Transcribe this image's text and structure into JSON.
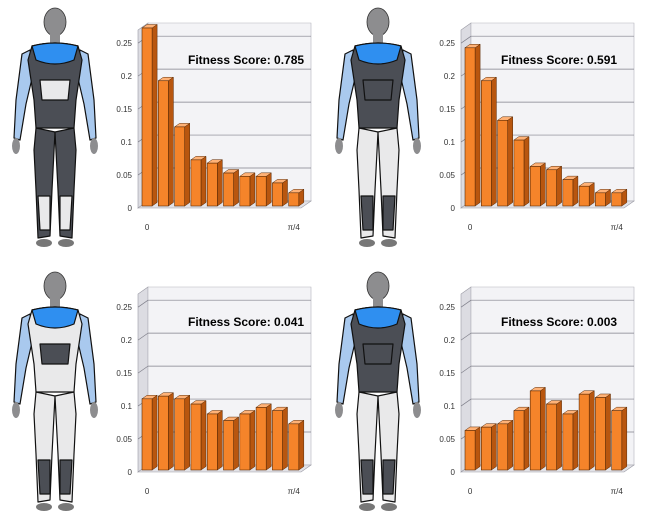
{
  "colors": {
    "bar_front": "#f5842a",
    "bar_side": "#b8560f",
    "bar_top": "#ffb277",
    "bar_edge": "#5a2a05",
    "wall": "#f3f3f6",
    "floor": "#e2e2e7",
    "grid": "#7f7f8a",
    "suit_dark": "#4b4e55",
    "suit_light": "#e9e9ea",
    "suit_blue": "#2f8ff0",
    "suit_lightblue": "#a9c9ee",
    "skin": "#8d8d8f"
  },
  "chart_data": [
    {
      "type": "bar",
      "annotation": "Fitness Score:  0.785",
      "categories": [
        "0",
        "",
        "",
        "",
        "",
        "",
        "",
        "",
        "",
        "π/4"
      ],
      "values": [
        0.27,
        0.19,
        0.12,
        0.07,
        0.065,
        0.05,
        0.045,
        0.045,
        0.035,
        0.02
      ],
      "yticks": [
        "0",
        "0.05",
        "0.1",
        "0.15",
        "0.2",
        "0.25"
      ],
      "ylim": [
        0,
        0.27
      ],
      "grid": true
    },
    {
      "type": "bar",
      "annotation": "Fitness Score:  0.591",
      "categories": [
        "0",
        "",
        "",
        "",
        "",
        "",
        "",
        "",
        "",
        "π/4"
      ],
      "values": [
        0.24,
        0.19,
        0.13,
        0.1,
        0.06,
        0.055,
        0.04,
        0.03,
        0.02,
        0.02
      ],
      "yticks": [
        "0",
        "0.05",
        "0.1",
        "0.15",
        "0.2",
        "0.25"
      ],
      "ylim": [
        0,
        0.27
      ],
      "grid": true
    },
    {
      "type": "bar",
      "annotation": "Fitness Score:  0.041",
      "categories": [
        "0",
        "",
        "",
        "",
        "",
        "",
        "",
        "",
        "",
        "π/4"
      ],
      "values": [
        0.108,
        0.112,
        0.108,
        0.1,
        0.085,
        0.075,
        0.085,
        0.095,
        0.09,
        0.07
      ],
      "yticks": [
        "0",
        "0.05",
        "0.1",
        "0.15",
        "0.2",
        "0.25"
      ],
      "ylim": [
        0,
        0.27
      ],
      "grid": true
    },
    {
      "type": "bar",
      "annotation": "Fitness Score:  0.003",
      "categories": [
        "0",
        "",
        "",
        "",
        "",
        "",
        "",
        "",
        "",
        "π/4"
      ],
      "values": [
        0.06,
        0.065,
        0.07,
        0.09,
        0.12,
        0.1,
        0.085,
        0.115,
        0.11,
        0.09
      ],
      "yticks": [
        "0",
        "0.05",
        "0.1",
        "0.15",
        "0.2",
        "0.25"
      ],
      "ylim": [
        0,
        0.27
      ],
      "grid": true
    }
  ]
}
